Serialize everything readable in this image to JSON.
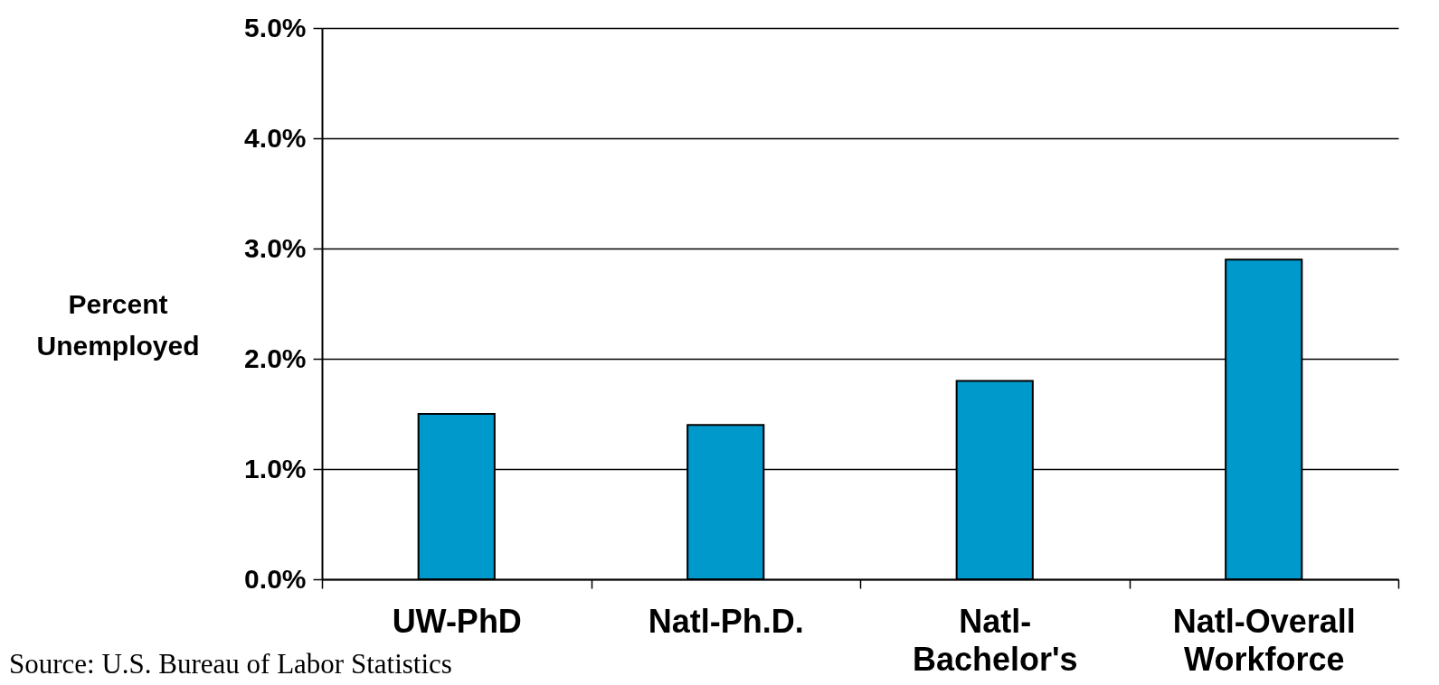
{
  "chart_data": {
    "type": "bar",
    "categories": [
      "UW-PhD",
      "Natl-Ph.D.",
      "Natl-Bachelor's",
      "Natl-Overall Workforce"
    ],
    "values": [
      1.5,
      1.4,
      1.8,
      2.9
    ],
    "color": "#0099cc",
    "ylabel": "Percent Unemployed",
    "ylim": [
      0,
      5
    ],
    "yticks": [
      {
        "value": 0,
        "label": "0.0%"
      },
      {
        "value": 1,
        "label": "1.0%"
      },
      {
        "value": 2,
        "label": "2.0%"
      },
      {
        "value": 3,
        "label": "3.0%"
      },
      {
        "value": 4,
        "label": "4.0%"
      },
      {
        "value": 5,
        "label": "5.0%"
      }
    ],
    "grid": "y",
    "annotations": [
      "Source: U.S. Bureau of Labor Statistics"
    ]
  }
}
